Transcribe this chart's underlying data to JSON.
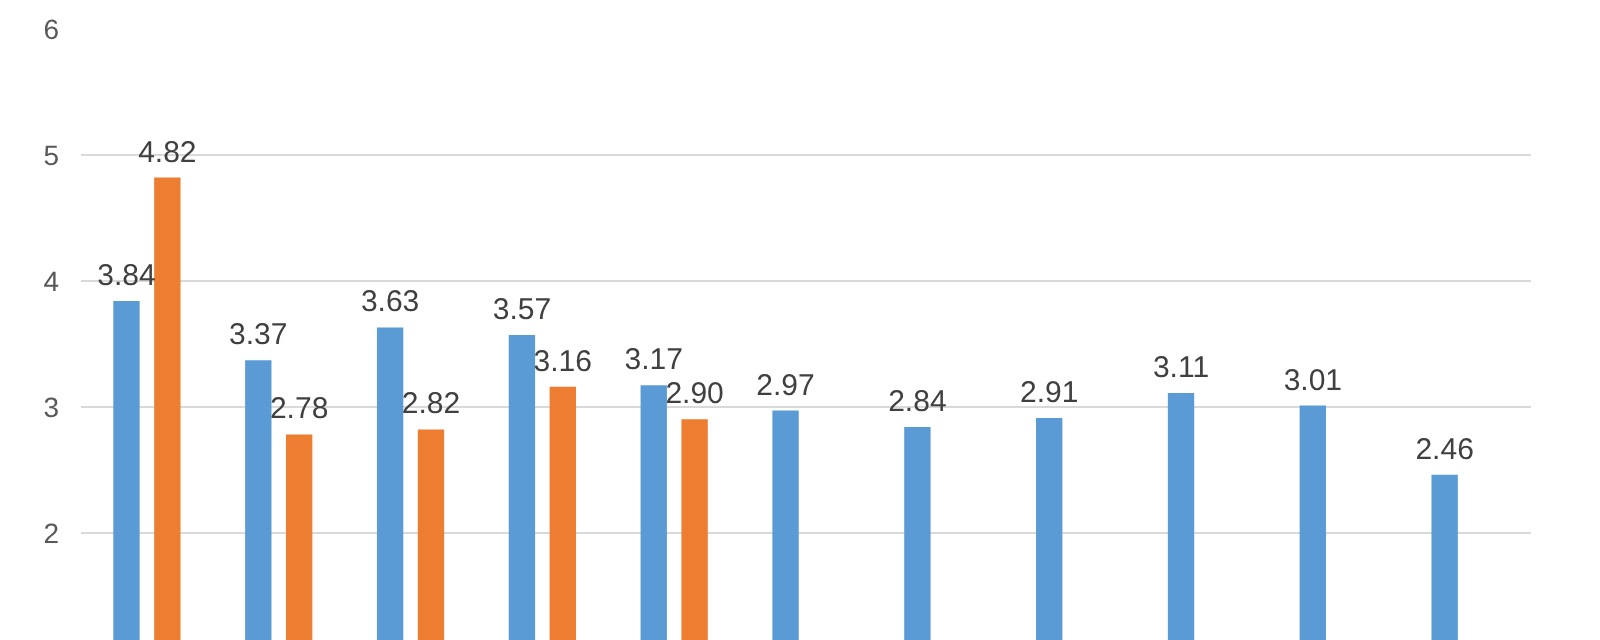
{
  "chart_data": {
    "type": "bar",
    "categories": [
      null,
      null,
      null,
      null,
      null,
      null,
      null,
      null,
      null,
      null,
      null
    ],
    "series": [
      {
        "color": "#5b9bd5",
        "values": [
          3.84,
          3.37,
          3.63,
          3.57,
          3.17,
          2.97,
          2.84,
          2.91,
          3.11,
          3.01,
          2.46
        ],
        "value_labels": [
          "3.84",
          "3.37",
          "3.63",
          "3.57",
          "3.17",
          "2.97",
          "2.84",
          "2.91",
          "3.11",
          "3.01",
          "2.46"
        ]
      },
      {
        "color": "#ed7d31",
        "values": [
          4.82,
          2.78,
          2.82,
          3.16,
          2.9,
          null,
          null,
          null,
          null,
          null,
          null
        ],
        "value_labels": [
          "4.82",
          "2.78",
          "2.82",
          "3.16",
          "2.90",
          null,
          null,
          null,
          null,
          null,
          null
        ]
      }
    ],
    "ylim": [
      1.14,
      6
    ],
    "yticks": [
      2,
      3,
      4,
      5,
      6
    ],
    "grid": "y",
    "tick_labels": "y"
  }
}
